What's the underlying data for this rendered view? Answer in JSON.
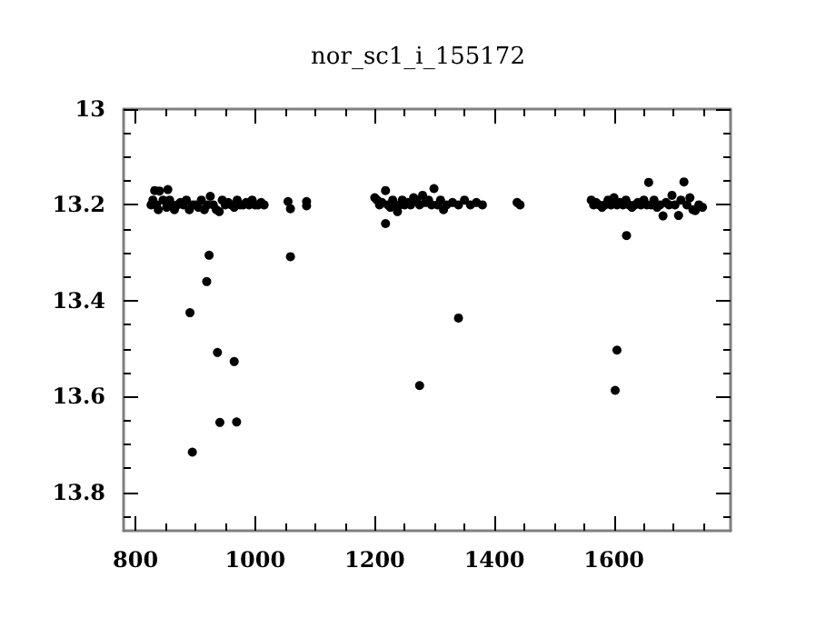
{
  "chart_data": {
    "type": "scatter",
    "title": "nor_sc1_i_155172",
    "x": [
      826,
      829,
      832,
      835,
      838,
      840,
      846,
      852,
      854,
      857,
      860,
      865,
      870,
      875,
      880,
      885,
      890,
      895,
      900,
      905,
      910,
      915,
      920,
      925,
      930,
      935,
      940,
      945,
      950,
      955,
      960,
      965,
      970,
      975,
      980,
      985,
      990,
      995,
      1000,
      1005,
      1010,
      1015,
      923,
      919,
      891,
      937,
      965,
      941,
      969,
      895,
      1055,
      1059,
      1086,
      1086,
      1059,
      1200,
      1204,
      1208,
      1212,
      1218,
      1218,
      1222,
      1226,
      1230,
      1234,
      1238,
      1242,
      1246,
      1250,
      1255,
      1260,
      1265,
      1270,
      1275,
      1280,
      1285,
      1290,
      1295,
      1299,
      1305,
      1310,
      1315,
      1320,
      1330,
      1340,
      1350,
      1360,
      1370,
      1380,
      1275,
      1340,
      1438,
      1443,
      1562,
      1566,
      1570,
      1575,
      1580,
      1585,
      1590,
      1595,
      1600,
      1605,
      1610,
      1615,
      1620,
      1625,
      1630,
      1635,
      1640,
      1645,
      1650,
      1655,
      1658,
      1662,
      1667,
      1672,
      1677,
      1682,
      1687,
      1692,
      1697,
      1702,
      1708,
      1712,
      1717,
      1722,
      1727,
      1732,
      1736,
      1742,
      1748,
      1605,
      1602,
      1621
    ],
    "values": [
      13.2,
      13.19,
      13.17,
      13.2,
      13.21,
      13.171,
      13.19,
      13.205,
      13.168,
      13.19,
      13.2,
      13.21,
      13.2,
      13.195,
      13.2,
      13.19,
      13.21,
      13.2,
      13.2,
      13.205,
      13.19,
      13.21,
      13.2,
      13.182,
      13.2,
      13.21,
      13.214,
      13.19,
      13.2,
      13.195,
      13.2,
      13.205,
      13.19,
      13.2,
      13.2,
      13.195,
      13.2,
      13.19,
      13.2,
      13.2,
      13.195,
      13.2,
      13.305,
      13.36,
      13.425,
      13.508,
      13.527,
      13.654,
      13.653,
      13.716,
      13.193,
      13.308,
      13.193,
      13.202,
      13.208,
      13.185,
      13.19,
      13.2,
      13.195,
      13.17,
      13.239,
      13.2,
      13.205,
      13.19,
      13.2,
      13.214,
      13.2,
      13.19,
      13.2,
      13.195,
      13.2,
      13.185,
      13.19,
      13.2,
      13.18,
      13.195,
      13.19,
      13.2,
      13.166,
      13.2,
      13.19,
      13.21,
      13.2,
      13.195,
      13.2,
      13.19,
      13.2,
      13.195,
      13.2,
      13.577,
      13.436,
      13.195,
      13.2,
      13.19,
      13.2,
      13.195,
      13.2,
      13.205,
      13.2,
      13.19,
      13.2,
      13.185,
      13.2,
      13.195,
      13.2,
      13.19,
      13.2,
      13.205,
      13.2,
      13.195,
      13.2,
      13.19,
      13.2,
      13.153,
      13.2,
      13.19,
      13.205,
      13.2,
      13.223,
      13.195,
      13.2,
      13.18,
      13.2,
      13.222,
      13.19,
      13.152,
      13.2,
      13.185,
      13.21,
      13.212,
      13.2,
      13.205,
      13.503,
      13.587,
      13.264
    ],
    "color": "#000000",
    "marker": "circle",
    "xlim": [
      780,
      1795
    ],
    "xticks": [
      800,
      1000,
      1200,
      1400,
      1600
    ],
    "ylim": [
      13.88,
      13
    ],
    "yticks": [
      13,
      13.2,
      13.4,
      13.6,
      13.8
    ]
  }
}
